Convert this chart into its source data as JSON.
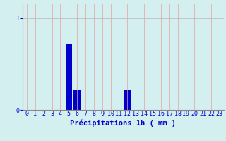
{
  "hours": [
    0,
    1,
    2,
    3,
    4,
    5,
    6,
    7,
    8,
    9,
    10,
    11,
    12,
    13,
    14,
    15,
    16,
    17,
    18,
    19,
    20,
    21,
    22,
    23
  ],
  "values": [
    0,
    0,
    0,
    0,
    0,
    0.72,
    0.22,
    0,
    0,
    0,
    0,
    0,
    0.22,
    0,
    0,
    0,
    0,
    0,
    0,
    0,
    0,
    0,
    0,
    0
  ],
  "bar_color": "#0000cc",
  "background_color": "#d4efef",
  "grid_color_h": "#b8b8b8",
  "grid_color_v": "#e8a0a0",
  "xlabel": "Précipitations 1h ( mm )",
  "xlabel_color": "#0000cc",
  "xlabel_fontsize": 7.5,
  "tick_color": "#0000cc",
  "tick_fontsize": 6,
  "ytick_labels": [
    "0",
    "1"
  ],
  "ytick_values": [
    0,
    1
  ],
  "ylim": [
    0,
    1.15
  ],
  "xlim": [
    -0.5,
    23.5
  ]
}
